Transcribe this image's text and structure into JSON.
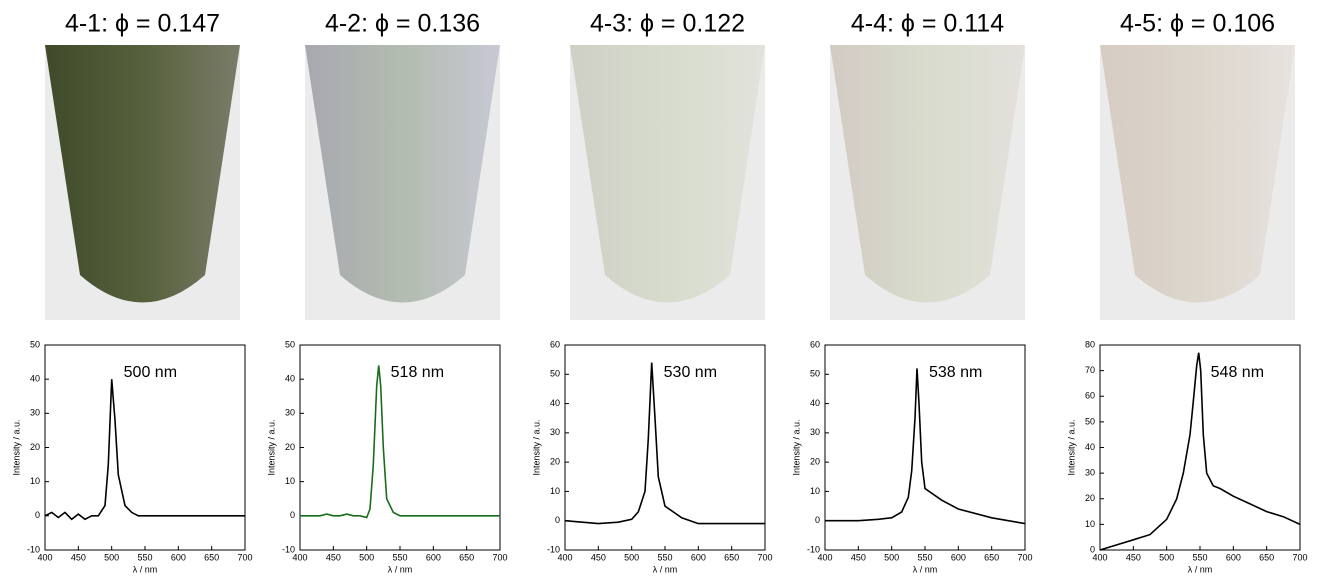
{
  "chart_data": [
    {
      "type": "line",
      "title": "4-1: ϕ = 0.147",
      "annotation": "500 nm",
      "xlabel": "λ / nm",
      "ylabel": "Intensity / a.u.",
      "color": "#000000",
      "x": [
        400,
        410,
        420,
        430,
        440,
        450,
        460,
        470,
        480,
        490,
        495,
        500,
        505,
        510,
        520,
        530,
        540,
        550,
        575,
        600,
        625,
        650,
        675,
        700
      ],
      "values": [
        0,
        1,
        -0.5,
        1,
        -1,
        0.5,
        -1,
        0,
        0,
        3,
        15,
        40,
        28,
        12,
        3,
        1,
        0,
        0,
        0,
        0,
        0,
        0,
        0,
        0
      ],
      "xlim": [
        400,
        700
      ],
      "xticks": [
        400,
        450,
        500,
        550,
        600,
        650,
        700
      ],
      "ylim": [
        -10,
        50
      ],
      "yticks": [
        -10,
        0,
        10,
        20,
        30,
        40,
        50
      ]
    },
    {
      "type": "line",
      "title": "4-2: ϕ = 0.136",
      "annotation": "518 nm",
      "xlabel": "λ / nm",
      "ylabel": "Intensity / a.u.",
      "color": "#1a6b1a",
      "x": [
        400,
        410,
        420,
        430,
        440,
        450,
        460,
        470,
        480,
        490,
        500,
        505,
        510,
        515,
        518,
        521,
        525,
        530,
        540,
        550,
        575,
        600,
        650,
        700
      ],
      "values": [
        0,
        0,
        0,
        0,
        0.5,
        0,
        0,
        0.5,
        0,
        0,
        -0.5,
        2,
        15,
        38,
        44,
        38,
        20,
        5,
        1,
        0,
        0,
        0,
        0,
        0
      ],
      "xlim": [
        400,
        700
      ],
      "xticks": [
        400,
        450,
        500,
        550,
        600,
        650,
        700
      ],
      "ylim": [
        -10,
        50
      ],
      "yticks": [
        -10,
        0,
        10,
        20,
        30,
        40,
        50
      ]
    },
    {
      "type": "line",
      "title": "4-3: ϕ = 0.122",
      "annotation": "530 nm",
      "xlabel": "λ / nm",
      "ylabel": "Intensity / a.u.",
      "color": "#000000",
      "x": [
        400,
        450,
        480,
        500,
        510,
        520,
        525,
        530,
        535,
        540,
        550,
        575,
        600,
        650,
        700
      ],
      "values": [
        0,
        -1,
        -0.5,
        0.5,
        3,
        10,
        28,
        54,
        35,
        15,
        5,
        1,
        -1,
        -1,
        -1
      ],
      "xlim": [
        400,
        700
      ],
      "xticks": [
        400,
        450,
        500,
        550,
        600,
        650,
        700
      ],
      "ylim": [
        -10,
        60
      ],
      "yticks": [
        -10,
        0,
        10,
        20,
        30,
        40,
        50,
        60
      ]
    },
    {
      "type": "line",
      "title": "4-4: ϕ = 0.114",
      "annotation": "538 nm",
      "xlabel": "λ / nm",
      "ylabel": "Intensity / a.u.",
      "color": "#000000",
      "x": [
        400,
        450,
        480,
        500,
        515,
        525,
        530,
        535,
        538,
        541,
        545,
        550,
        575,
        600,
        650,
        700
      ],
      "values": [
        0,
        0,
        0.5,
        1,
        3,
        8,
        17,
        35,
        52,
        40,
        20,
        11,
        7,
        4,
        1,
        -1
      ],
      "xlim": [
        400,
        700
      ],
      "xticks": [
        400,
        450,
        500,
        550,
        600,
        650,
        700
      ],
      "ylim": [
        -10,
        60
      ],
      "yticks": [
        -10,
        0,
        10,
        20,
        30,
        40,
        50,
        60
      ]
    },
    {
      "type": "line",
      "title": "4-5: ϕ = 0.106",
      "annotation": "548 nm",
      "xlabel": "λ / nm",
      "ylabel": "Intensity / a.u.",
      "color": "#000000",
      "x": [
        400,
        425,
        450,
        475,
        500,
        515,
        525,
        535,
        540,
        545,
        548,
        551,
        555,
        560,
        570,
        580,
        600,
        625,
        650,
        675,
        700
      ],
      "values": [
        0,
        2,
        4,
        6,
        12,
        20,
        30,
        45,
        58,
        72,
        77,
        70,
        45,
        30,
        25,
        24,
        21,
        18,
        15,
        13,
        10
      ],
      "xlim": [
        400,
        700
      ],
      "xticks": [
        400,
        450,
        500,
        550,
        600,
        650,
        700
      ],
      "ylim": [
        0,
        80
      ],
      "yticks": [
        0,
        10,
        20,
        30,
        40,
        50,
        60,
        70,
        80
      ]
    }
  ]
}
